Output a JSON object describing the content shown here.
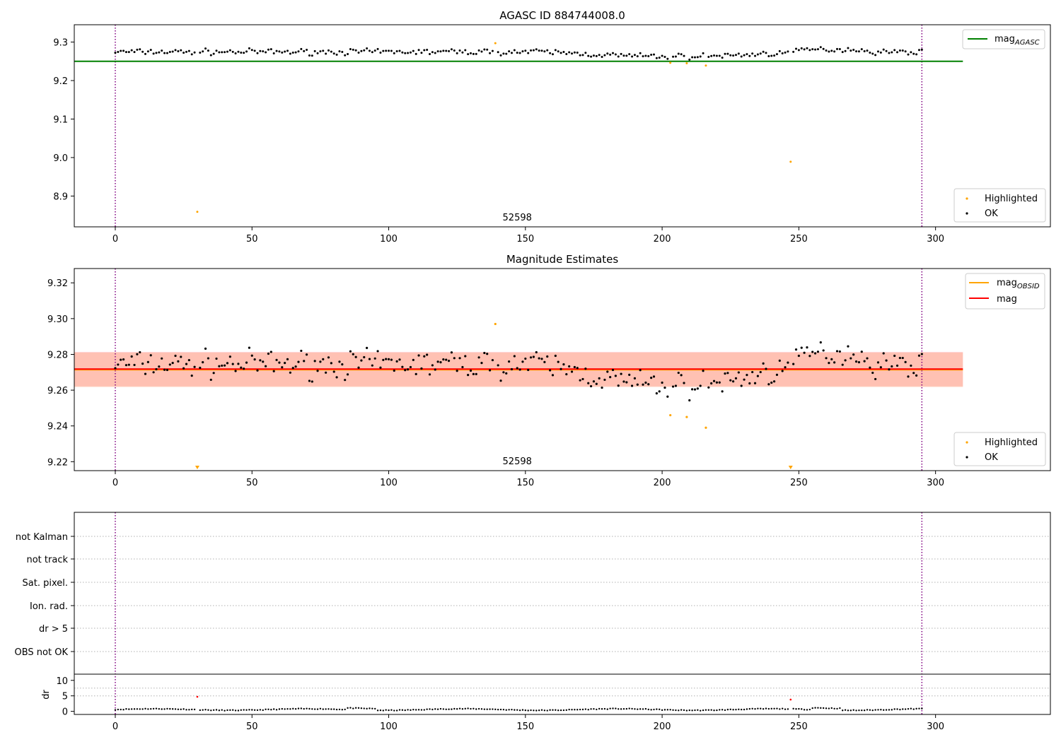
{
  "colors": {
    "ok": "#000000",
    "highlighted": "#ffa500",
    "mag_agasc": "#008000",
    "mag_obsid": "#ffa500",
    "mag": "#ff0000",
    "vline": "#800080",
    "band_obsid": "#ffa07a",
    "band_mag": "#ffc0cb",
    "grid": "#b0b0b0",
    "dr_flag": "#ff0000"
  },
  "chart_data": [
    {
      "type": "scatter",
      "title": "AGASC ID 884744008.0",
      "xlim": [
        -15,
        342
      ],
      "ylim": [
        8.82,
        9.345
      ],
      "xticks": [
        0,
        50,
        100,
        150,
        200,
        250,
        300
      ],
      "yticks": [
        8.9,
        9.0,
        9.1,
        9.2,
        9.3
      ],
      "ytick_labels": [
        "8.9",
        "9.0",
        "9.1",
        "9.2",
        "9.3"
      ],
      "obsid_label": "52598",
      "obsid_label_x": 147,
      "vlines": [
        0,
        295
      ],
      "hlines": [
        {
          "y": 9.25,
          "x": [
            -15,
            310
          ],
          "series": "mag_agasc"
        }
      ],
      "ok_series_name": "OK",
      "highlighted_series_name": "Highlighted",
      "highlighted": {
        "x": [
          30,
          139,
          203,
          209,
          216,
          247
        ],
        "y": [
          8.859,
          9.297,
          9.246,
          9.245,
          9.239,
          8.989
        ]
      },
      "legend_upper": [
        {
          "key": "mag_agasc",
          "label": "mag",
          "sub": "AGASC"
        }
      ],
      "legend_lower": [
        {
          "key": "highlighted",
          "label": "Highlighted"
        },
        {
          "key": "ok",
          "label": "OK"
        }
      ]
    },
    {
      "type": "scatter",
      "title": "Magnitude Estimates",
      "xlim": [
        -15,
        342
      ],
      "ylim": [
        9.215,
        9.328
      ],
      "xticks": [
        0,
        50,
        100,
        150,
        200,
        250,
        300
      ],
      "yticks": [
        9.22,
        9.24,
        9.26,
        9.28,
        9.3,
        9.32
      ],
      "ytick_labels": [
        "9.22",
        "9.24",
        "9.26",
        "9.28",
        "9.30",
        "9.32"
      ],
      "obsid_label": "52598",
      "obsid_label_x": 147,
      "vlines": [
        0,
        295
      ],
      "mag": 9.2718,
      "mag_obsid": 9.2714,
      "band_mag": [
        9.2622,
        9.2814
      ],
      "band_obsid": [
        9.2618,
        9.2811
      ],
      "band_x": [
        -15,
        310
      ],
      "ok_series_name": "OK",
      "highlighted_series_name": "Highlighted",
      "highlighted": {
        "x": [
          139,
          203,
          209,
          216
        ],
        "y": [
          9.297,
          9.246,
          9.245,
          9.239
        ]
      },
      "out_of_range_low_x": [
        30,
        247
      ],
      "legend_upper": [
        {
          "key": "mag_obsid",
          "label": "mag",
          "sub": "OBSID"
        },
        {
          "key": "mag",
          "label": "mag",
          "sub": ""
        }
      ],
      "legend_lower": [
        {
          "key": "highlighted",
          "label": "Highlighted"
        },
        {
          "key": "ok",
          "label": "OK"
        }
      ]
    },
    {
      "type": "scatter",
      "title": "",
      "xlim": [
        -15,
        342
      ],
      "flag_rows": [
        "not Kalman",
        "not track",
        "Sat. pixel.",
        "Ion. rad.",
        "dr > 5",
        "OBS not OK"
      ],
      "vlines": [
        0,
        295
      ],
      "dr_ylabel": "dr",
      "dr_ylim": [
        -1,
        12
      ],
      "dr_yticks": [
        0,
        5,
        10
      ],
      "dr_ytick_labels": [
        "0",
        "5",
        "10"
      ],
      "dr_gridlines": [
        5,
        7.5
      ],
      "dr_flagged": {
        "x": [
          30,
          247
        ],
        "y": [
          4.7,
          3.8
        ]
      },
      "xticks": [
        0,
        50,
        100,
        150,
        200,
        250,
        300
      ]
    }
  ]
}
